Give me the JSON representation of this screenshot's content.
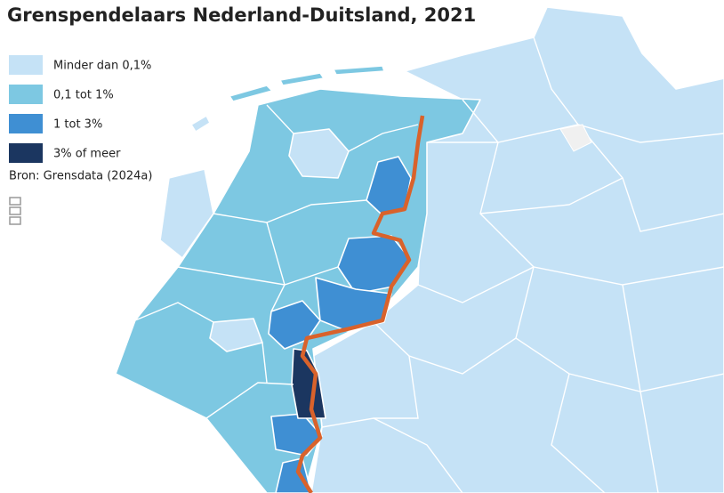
{
  "title": "Grenspendelaars Nederland-Duitsland, 2021",
  "legend": [
    {
      "label": "Minder dan  0,1%",
      "color": "#c5e2f6"
    },
    {
      "label": "0,1 tot 1%",
      "color": "#7dc8e2"
    },
    {
      "label": "1 tot 3%",
      "color": "#3f8fd3"
    },
    {
      "label": "3% of meer",
      "color": "#1b3660"
    }
  ],
  "source": "Bron: Grensdata (2024a)"
}
